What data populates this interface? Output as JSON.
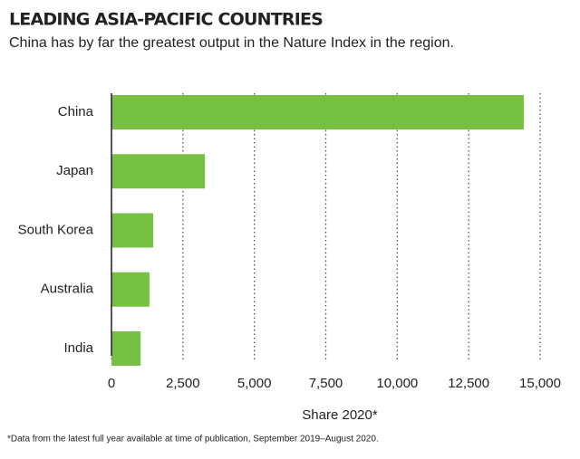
{
  "chart_data": {
    "type": "barh",
    "title": "LEADING ASIA-PACIFIC COUNTRIES",
    "subtitle": "China has by far the greatest output in the Nature Index in the region.",
    "xlabel": "Share 2020*",
    "footnote": "*Data from the latest full year available at time of publication, September 2019–August 2020.",
    "categories": [
      "China",
      "Japan",
      "South Korea",
      "Australia",
      "India"
    ],
    "values": [
      14430,
      3270,
      1460,
      1330,
      1020
    ],
    "color": "#76c043",
    "xlim": [
      0,
      15000
    ],
    "xticks": [
      0,
      {
        "value": 2500,
        "label": "2,500"
      },
      {
        "value": 5000,
        "label": "5,000"
      },
      {
        "value": 7500,
        "label": "7,500"
      },
      {
        "value": 10000,
        "label": "10,000"
      },
      {
        "value": 12500,
        "label": "12,500"
      },
      {
        "value": 15000,
        "label": "15,000"
      }
    ],
    "grid": true
  }
}
